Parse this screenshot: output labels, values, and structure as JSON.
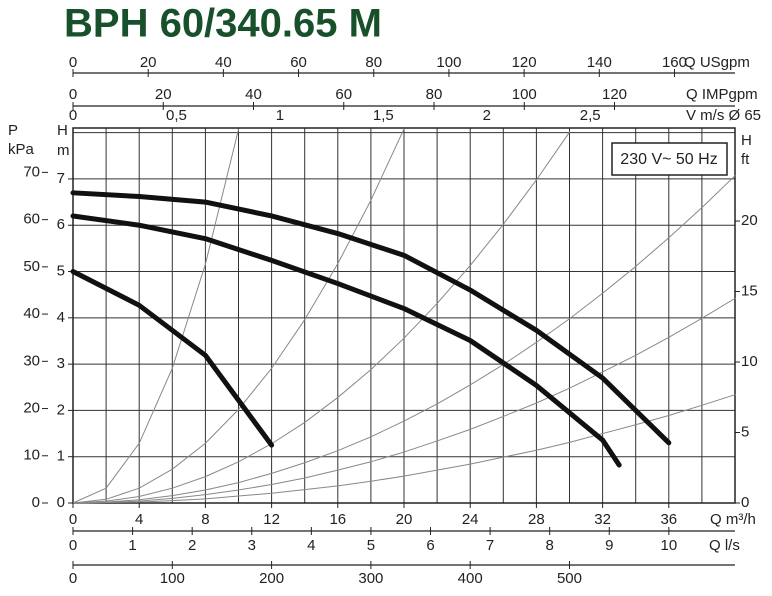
{
  "chart_data": {
    "type": "line",
    "title": "BPH 60/340.65 M",
    "annotation": "230 V~ 50 Hz",
    "x_label": "Q m³/h",
    "xlim": [
      0,
      40
    ],
    "xticks": [
      0,
      4,
      8,
      12,
      16,
      20,
      24,
      28,
      32,
      36
    ],
    "y_label": [
      "H",
      "m"
    ],
    "ylim": [
      0,
      8.1
    ],
    "yticks": [
      0,
      1,
      2,
      3,
      4,
      5,
      6,
      7
    ],
    "grid": true,
    "grid_x": [
      0,
      2,
      4,
      6,
      8,
      10,
      12,
      14,
      16,
      18,
      20,
      22,
      24,
      26,
      28,
      30,
      32,
      34,
      36,
      38,
      40
    ],
    "grid_y": [
      0,
      1,
      2,
      3,
      4,
      5,
      6,
      7,
      8
    ],
    "extra_axes": [
      {
        "label": [
          "Q USgpm"
        ],
        "lim": [
          0,
          176.1
        ],
        "ticks": [
          0,
          20,
          40,
          60,
          80,
          100,
          120,
          140,
          160
        ]
      },
      {
        "label": [
          "Q IMPgpm"
        ],
        "lim": [
          0,
          146.7
        ],
        "ticks": [
          0,
          20,
          40,
          60,
          80,
          100,
          120
        ]
      },
      {
        "label": [
          "V m/s Ø 65"
        ],
        "lim": [
          0,
          3.2
        ],
        "ticks": [
          0,
          {
            "value": 0.5,
            "label": "0,5"
          },
          1,
          {
            "value": 1.5,
            "label": "1,5"
          },
          2,
          {
            "value": 2.5,
            "label": "2,5"
          }
        ]
      },
      {
        "label": [
          "Q l/s"
        ],
        "lim": [
          0,
          11.11
        ],
        "ticks": [
          0,
          1,
          2,
          3,
          4,
          5,
          6,
          7,
          8,
          9,
          10
        ]
      },
      {
        "lim": [
          0,
          666.7
        ],
        "ticks": [
          0,
          100,
          200,
          300,
          400,
          500
        ]
      },
      {
        "label": [
          "P",
          "kPa"
        ],
        "lim": [
          0,
          79.4
        ],
        "ticks": [
          0,
          10,
          20,
          30,
          40,
          50,
          60,
          70
        ]
      },
      {
        "label": [
          "H",
          "ft"
        ],
        "lim": [
          0,
          26.6
        ],
        "ticks": [
          0,
          5,
          10,
          15,
          20
        ]
      }
    ],
    "series": [
      {
        "color": "#111111",
        "line_width": 5,
        "x": [
          0,
          4,
          8,
          12,
          16,
          20,
          24,
          28,
          32,
          36
        ],
        "values": [
          6.7,
          6.62,
          6.5,
          6.2,
          5.82,
          5.35,
          4.6,
          3.73,
          2.7,
          1.3
        ]
      },
      {
        "color": "#111111",
        "line_width": 5,
        "x": [
          0,
          4,
          8,
          12,
          16,
          20,
          24,
          28,
          32,
          33
        ],
        "values": [
          6.2,
          6.0,
          5.71,
          5.24,
          4.74,
          4.2,
          3.51,
          2.54,
          1.36,
          0.82
        ]
      },
      {
        "color": "#111111",
        "line_width": 5,
        "x": [
          0,
          4,
          8,
          12
        ],
        "values": [
          5.0,
          4.27,
          3.19,
          1.25
        ]
      },
      {
        "color": "#888888",
        "line_width": 1,
        "x": [
          0,
          2,
          4,
          6,
          8,
          10
        ],
        "values": [
          0,
          0.32,
          1.29,
          2.91,
          5.16,
          8.07
        ]
      },
      {
        "color": "#888888",
        "line_width": 1,
        "x": [
          0,
          2,
          4,
          6,
          8,
          10,
          12,
          14,
          16,
          18,
          20
        ],
        "values": [
          0,
          0.08,
          0.32,
          0.73,
          1.29,
          2.02,
          2.91,
          3.96,
          5.17,
          6.54,
          8.08
        ]
      },
      {
        "color": "#888888",
        "line_width": 1,
        "x": [
          0,
          2,
          4,
          6,
          8,
          10,
          12,
          14,
          16,
          18,
          20,
          22,
          24,
          26,
          28,
          30
        ],
        "values": [
          0,
          0.04,
          0.14,
          0.32,
          0.57,
          0.89,
          1.28,
          1.74,
          2.28,
          2.88,
          3.56,
          4.31,
          5.13,
          6.02,
          6.98,
          8.01
        ]
      },
      {
        "color": "#888888",
        "line_width": 1,
        "x": [
          0,
          2,
          4,
          6,
          8,
          10,
          12,
          14,
          16,
          18,
          20,
          22,
          24,
          26,
          28,
          30,
          32,
          34,
          36,
          38,
          40
        ],
        "values": [
          0,
          0.02,
          0.07,
          0.16,
          0.28,
          0.44,
          0.64,
          0.87,
          1.13,
          1.43,
          1.77,
          2.14,
          2.55,
          2.99,
          3.47,
          3.98,
          4.53,
          5.11,
          5.73,
          6.38,
          7.07
        ]
      },
      {
        "color": "#888888",
        "line_width": 1,
        "x": [
          0,
          2,
          4,
          6,
          8,
          10,
          12,
          14,
          16,
          18,
          20,
          22,
          24,
          26,
          28,
          30,
          32,
          34,
          36,
          38,
          40
        ],
        "values": [
          0,
          0.01,
          0.04,
          0.1,
          0.18,
          0.28,
          0.4,
          0.54,
          0.71,
          0.89,
          1.1,
          1.34,
          1.59,
          1.87,
          2.16,
          2.48,
          2.83,
          3.19,
          3.58,
          3.99,
          4.42
        ]
      },
      {
        "color": "#888888",
        "line_width": 1,
        "x": [
          0,
          2,
          4,
          6,
          8,
          10,
          12,
          14,
          16,
          18,
          20,
          22,
          24,
          26,
          28,
          30,
          32,
          34,
          36,
          38,
          40
        ],
        "values": [
          0,
          0.01,
          0.02,
          0.05,
          0.09,
          0.15,
          0.21,
          0.29,
          0.37,
          0.47,
          0.58,
          0.71,
          0.84,
          0.99,
          1.14,
          1.31,
          1.5,
          1.69,
          1.89,
          2.11,
          2.34
        ]
      }
    ]
  }
}
